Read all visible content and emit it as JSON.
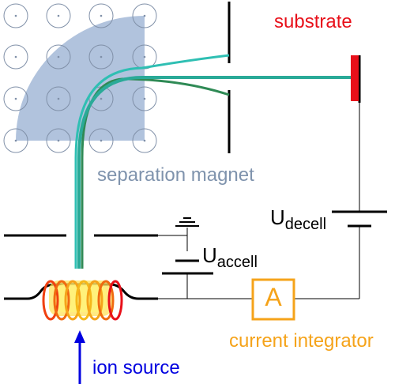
{
  "labels": {
    "substrate": "substrate",
    "separation_magnet": "separation magnet",
    "u_decell_main": "U",
    "u_decell_sub": "decell",
    "u_accell_main": "U",
    "u_accell_sub": "accell",
    "ammeter_symbol": "A",
    "current_integrator": "current integrator",
    "ion_source": "ion source"
  },
  "colors": {
    "substrate": "#e8101a",
    "magnet_field": "#a9bcd9",
    "magnet_dot": "#7f8fa8",
    "beam_main": "#2aaa98",
    "beam_light": "#2fbfb3",
    "beam_heavy": "#2f8a55",
    "integrator": "#f5a31a",
    "ion_arrow": "#0000e0",
    "wire": "#000000",
    "magnet_label": "#7f93ad"
  },
  "icons": {
    "magnetic_field": "field-into-page-dots",
    "coil": "ion-source-coil",
    "ammeter": "ammeter-box",
    "ground": "ground-symbol",
    "battery": "battery-symbol"
  }
}
